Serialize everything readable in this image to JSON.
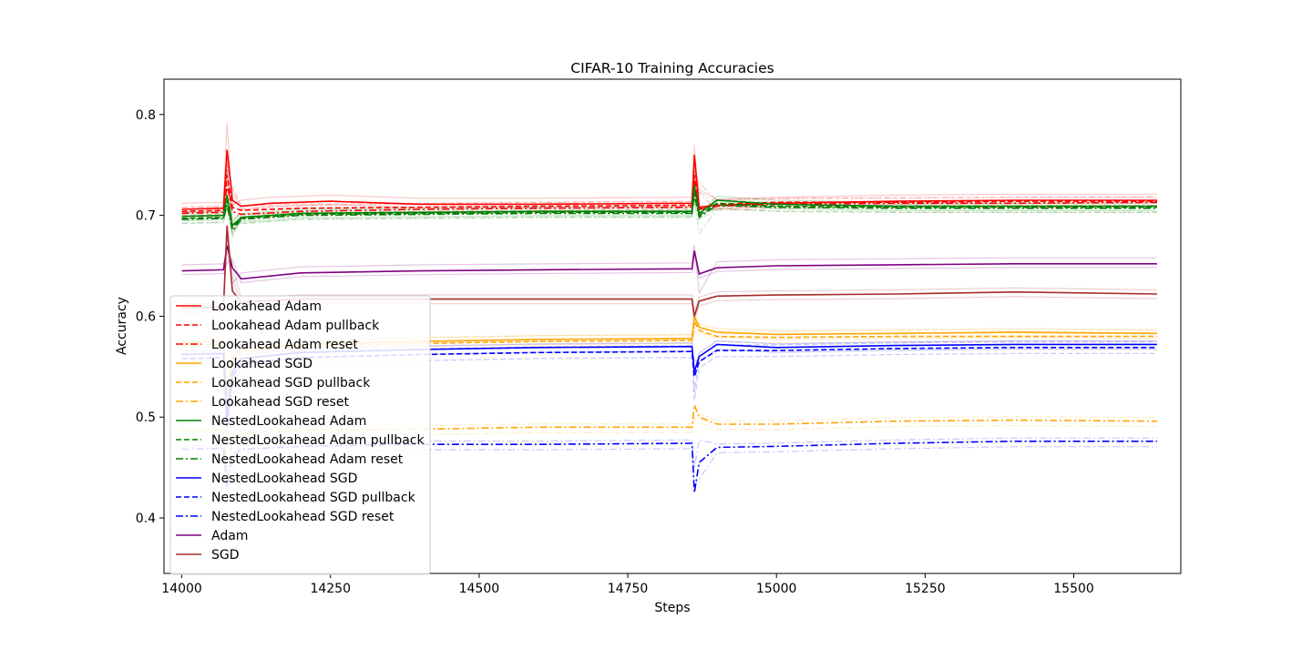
{
  "chart_data": {
    "type": "line",
    "title": "CIFAR-10 Training Accuracies",
    "xlabel": "Steps",
    "ylabel": "Accuracy",
    "xlim": [
      13970,
      15680
    ],
    "ylim": [
      0.345,
      0.835
    ],
    "xticks": [
      14000,
      14250,
      14500,
      14750,
      15000,
      15250,
      15500
    ],
    "xtick_labels": [
      "14000",
      "14250",
      "14500",
      "14750",
      "15000",
      "15250",
      "15500"
    ],
    "yticks": [
      0.4,
      0.5,
      0.6,
      0.7,
      0.8
    ],
    "ytick_labels": [
      "0.4",
      "0.5",
      "0.6",
      "0.7",
      "0.8"
    ],
    "grid": false,
    "legend_position": "lower-left",
    "faint_traces": "each series is overlaid on lighter per-run traces of the same colour",
    "series": [
      {
        "name": "Lookahead Adam",
        "color": "#ff0000",
        "style": "solid",
        "x": [
          14000,
          14070,
          14076,
          14085,
          14100,
          14150,
          14250,
          14400,
          14600,
          14858,
          14862,
          14870,
          14900,
          15000,
          15200,
          15400,
          15640
        ],
        "y": [
          0.706,
          0.707,
          0.765,
          0.715,
          0.709,
          0.712,
          0.714,
          0.711,
          0.711,
          0.712,
          0.76,
          0.708,
          0.71,
          0.712,
          0.714,
          0.715,
          0.715
        ]
      },
      {
        "name": "Lookahead Adam pullback",
        "color": "#ff0000",
        "style": "dashed",
        "x": [
          14000,
          14070,
          14076,
          14085,
          14100,
          14200,
          14400,
          14600,
          14858,
          14862,
          14870,
          14900,
          15000,
          15200,
          15400,
          15640
        ],
        "y": [
          0.704,
          0.705,
          0.74,
          0.708,
          0.705,
          0.707,
          0.708,
          0.709,
          0.71,
          0.74,
          0.707,
          0.711,
          0.713,
          0.713,
          0.714,
          0.714
        ]
      },
      {
        "name": "Lookahead Adam reset",
        "color": "#ff0000",
        "style": "dashdot",
        "x": [
          14000,
          14070,
          14076,
          14085,
          14100,
          14200,
          14400,
          14600,
          14858,
          14862,
          14870,
          14900,
          15000,
          15200,
          15400,
          15640
        ],
        "y": [
          0.702,
          0.703,
          0.73,
          0.704,
          0.701,
          0.704,
          0.706,
          0.707,
          0.708,
          0.735,
          0.706,
          0.709,
          0.711,
          0.712,
          0.712,
          0.713
        ]
      },
      {
        "name": "Lookahead SGD",
        "color": "#ffa500",
        "style": "solid",
        "x": [
          14000,
          14070,
          14076,
          14085,
          14100,
          14200,
          14400,
          14600,
          14858,
          14862,
          14870,
          14900,
          15000,
          15200,
          15400,
          15640
        ],
        "y": [
          0.574,
          0.575,
          0.52,
          0.56,
          0.568,
          0.572,
          0.575,
          0.577,
          0.578,
          0.6,
          0.589,
          0.584,
          0.582,
          0.583,
          0.584,
          0.583
        ]
      },
      {
        "name": "Lookahead SGD pullback",
        "color": "#ffa500",
        "style": "dashed",
        "x": [
          14000,
          14070,
          14076,
          14085,
          14100,
          14200,
          14400,
          14600,
          14858,
          14862,
          14870,
          14900,
          15000,
          15200,
          15400,
          15640
        ],
        "y": [
          0.571,
          0.572,
          0.52,
          0.556,
          0.565,
          0.57,
          0.573,
          0.575,
          0.576,
          0.595,
          0.586,
          0.58,
          0.579,
          0.58,
          0.58,
          0.58
        ]
      },
      {
        "name": "Lookahead SGD reset",
        "color": "#ffa500",
        "style": "dashdot",
        "x": [
          14000,
          14070,
          14076,
          14085,
          14100,
          14200,
          14400,
          14600,
          14858,
          14862,
          14870,
          14900,
          15000,
          15200,
          15400,
          15640
        ],
        "y": [
          0.486,
          0.487,
          0.44,
          0.478,
          0.484,
          0.487,
          0.488,
          0.49,
          0.49,
          0.512,
          0.5,
          0.493,
          0.493,
          0.496,
          0.497,
          0.496
        ]
      },
      {
        "name": "NestedLookahead Adam",
        "color": "#008000",
        "style": "solid",
        "x": [
          14000,
          14070,
          14076,
          14085,
          14100,
          14200,
          14400,
          14600,
          14858,
          14862,
          14870,
          14900,
          15000,
          15200,
          15400,
          15640
        ],
        "y": [
          0.699,
          0.7,
          0.72,
          0.69,
          0.698,
          0.702,
          0.703,
          0.704,
          0.704,
          0.73,
          0.702,
          0.715,
          0.711,
          0.709,
          0.709,
          0.709
        ]
      },
      {
        "name": "NestedLookahead Adam pullback",
        "color": "#008000",
        "style": "dashed",
        "x": [
          14000,
          14070,
          14076,
          14085,
          14100,
          14200,
          14400,
          14600,
          14858,
          14862,
          14870,
          14900,
          15000,
          15200,
          15400,
          15640
        ],
        "y": [
          0.697,
          0.698,
          0.715,
          0.688,
          0.697,
          0.701,
          0.702,
          0.703,
          0.703,
          0.725,
          0.7,
          0.712,
          0.709,
          0.708,
          0.708,
          0.708
        ]
      },
      {
        "name": "NestedLookahead Adam reset",
        "color": "#008000",
        "style": "dashdot",
        "x": [
          14000,
          14070,
          14076,
          14085,
          14100,
          14200,
          14400,
          14600,
          14858,
          14862,
          14870,
          14900,
          15000,
          15200,
          15400,
          15640
        ],
        "y": [
          0.696,
          0.697,
          0.71,
          0.685,
          0.696,
          0.7,
          0.701,
          0.702,
          0.702,
          0.72,
          0.698,
          0.71,
          0.708,
          0.707,
          0.707,
          0.707
        ]
      },
      {
        "name": "NestedLookahead SGD",
        "color": "#0000ff",
        "style": "solid",
        "x": [
          14000,
          14070,
          14076,
          14085,
          14100,
          14200,
          14400,
          14600,
          14858,
          14862,
          14870,
          14900,
          15000,
          15200,
          15400,
          15640
        ],
        "y": [
          0.562,
          0.563,
          0.5,
          0.545,
          0.558,
          0.564,
          0.567,
          0.569,
          0.57,
          0.545,
          0.56,
          0.572,
          0.569,
          0.571,
          0.572,
          0.572
        ]
      },
      {
        "name": "NestedLookahead SGD pullback",
        "color": "#0000ff",
        "style": "dashed",
        "x": [
          14000,
          14070,
          14076,
          14085,
          14100,
          14200,
          14400,
          14600,
          14858,
          14862,
          14870,
          14900,
          15000,
          15200,
          15400,
          15640
        ],
        "y": [
          0.558,
          0.559,
          0.49,
          0.54,
          0.553,
          0.559,
          0.562,
          0.564,
          0.565,
          0.54,
          0.555,
          0.566,
          0.566,
          0.568,
          0.569,
          0.569
        ]
      },
      {
        "name": "NestedLookahead SGD reset",
        "color": "#0000ff",
        "style": "dashdot",
        "x": [
          14000,
          14070,
          14076,
          14085,
          14100,
          14200,
          14400,
          14600,
          14858,
          14862,
          14870,
          14900,
          15000,
          15200,
          15400,
          15640
        ],
        "y": [
          0.468,
          0.469,
          0.43,
          0.462,
          0.468,
          0.471,
          0.473,
          0.473,
          0.474,
          0.425,
          0.455,
          0.47,
          0.471,
          0.474,
          0.476,
          0.476
        ]
      },
      {
        "name": "Adam",
        "color": "#800080",
        "style": "solid",
        "x": [
          14000,
          14070,
          14076,
          14085,
          14100,
          14200,
          14400,
          14600,
          14858,
          14862,
          14870,
          14900,
          15000,
          15200,
          15400,
          15640
        ],
        "y": [
          0.645,
          0.646,
          0.67,
          0.648,
          0.637,
          0.643,
          0.645,
          0.646,
          0.647,
          0.665,
          0.642,
          0.648,
          0.65,
          0.651,
          0.652,
          0.652
        ]
      },
      {
        "name": "SGD",
        "color": "#a52a2a",
        "style": "solid",
        "x": [
          14000,
          14070,
          14076,
          14085,
          14100,
          14200,
          14400,
          14600,
          14858,
          14862,
          14870,
          14900,
          15000,
          15200,
          15400,
          15640
        ],
        "y": [
          0.608,
          0.609,
          0.69,
          0.625,
          0.614,
          0.617,
          0.617,
          0.617,
          0.617,
          0.6,
          0.615,
          0.62,
          0.621,
          0.622,
          0.624,
          0.622
        ]
      }
    ]
  }
}
